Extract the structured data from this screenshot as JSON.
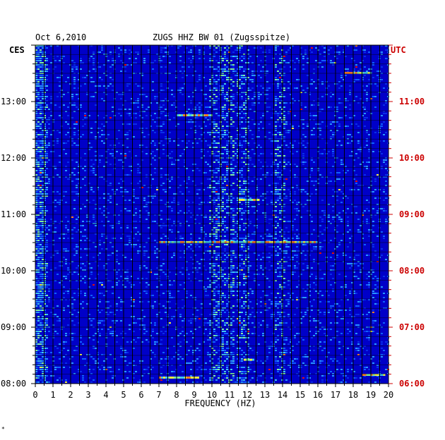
{
  "header": {
    "date": "Oct 6,2010",
    "station": "ZUGS HHZ BW 01 (Zugsspitze)",
    "left_tz": "CES",
    "right_tz": "UTC"
  },
  "footer_mark": "*",
  "colors": {
    "background": "#0000c8",
    "grid": "#000000",
    "left_labels": "#000000",
    "right_labels": "#cc0000"
  },
  "chart_data": {
    "type": "heatmap",
    "title": "ZUGS HHZ BW 01 (Zugsspitze)",
    "xlabel": "FREQUENCY (HZ)",
    "xlim": [
      0,
      20
    ],
    "x_ticks": [
      "0",
      "1",
      "2",
      "3",
      "4",
      "5",
      "6",
      "7",
      "8",
      "9",
      "10",
      "11",
      "12",
      "13",
      "14",
      "15",
      "16",
      "17",
      "18",
      "19",
      "20"
    ],
    "y_ticks_left": [
      "08:00",
      "09:00",
      "10:00",
      "11:00",
      "12:00",
      "13:00"
    ],
    "y_ticks_right": [
      "06:00",
      "07:00",
      "08:00",
      "09:00",
      "10:00",
      "11:00"
    ],
    "time_range_hours": [
      8,
      14
    ],
    "persistent_bands_hz": [
      0.3,
      10.1,
      10.9,
      11.7,
      13.8
    ],
    "strong_events": [
      {
        "time": "08:06",
        "hz_from": 7.0,
        "hz_to": 9.2
      },
      {
        "time": "08:09",
        "hz_from": 18.5,
        "hz_to": 19.8
      },
      {
        "time": "08:25",
        "hz_from": 11.8,
        "hz_to": 12.4
      },
      {
        "time": "10:30",
        "hz_from": 7.0,
        "hz_to": 16.0
      },
      {
        "time": "11:15",
        "hz_from": 11.5,
        "hz_to": 12.6
      },
      {
        "time": "12:45",
        "hz_from": 8.0,
        "hz_to": 10.0
      },
      {
        "time": "13:30",
        "hz_from": 17.5,
        "hz_to": 19.0
      }
    ]
  }
}
